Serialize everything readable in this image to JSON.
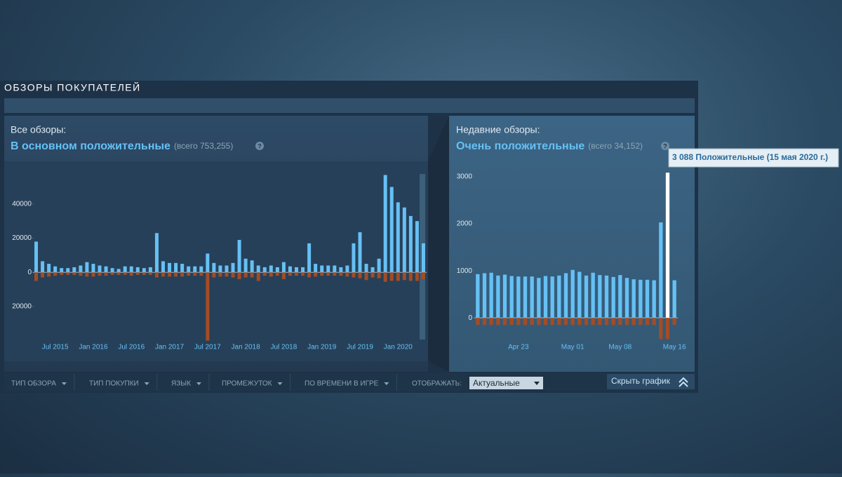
{
  "section_title": "ОБЗОРЫ ПОКУПАТЕЛЕЙ",
  "summary": {
    "all": {
      "label": "Все обзоры:",
      "rating": "В основном положительные",
      "total": "(всего 753,255)"
    },
    "recent": {
      "label": "Недавние обзоры:",
      "rating": "Очень положительные",
      "total": "(всего 34,152)"
    }
  },
  "tooltip": "3 088 Положительные (15 мая 2020 г.)",
  "filters": [
    "ТИП ОБЗОРА",
    "ТИП ПОКУПКИ",
    "ЯЗЫК",
    "ПРОМЕЖУТОК",
    "ПО ВРЕМЕНИ В ИГРЕ"
  ],
  "display": {
    "label": "ОТОБРАЖАТЬ:",
    "value": "Актуальные"
  },
  "hide_graph": "Скрыть график",
  "chart_data": [
    {
      "type": "bar",
      "categories": [
        null,
        null,
        null,
        "Jul 2015",
        null,
        null,
        null,
        null,
        null,
        "Jan 2016",
        null,
        null,
        null,
        null,
        null,
        "Jul 2016",
        null,
        null,
        null,
        null,
        null,
        "Jan 2017",
        null,
        null,
        null,
        null,
        null,
        "Jul 2017",
        null,
        null,
        null,
        null,
        null,
        "Jan 2018",
        null,
        null,
        null,
        null,
        null,
        "Jul 2018",
        null,
        null,
        null,
        null,
        null,
        "Jan 2019",
        null,
        null,
        null,
        null,
        null,
        "Jul 2019",
        null,
        null,
        null,
        null,
        null,
        "Jan 2020",
        null,
        null,
        null,
        null
      ],
      "series": [
        {
          "color": "#66c0f4",
          "values": [
            18000,
            6500,
            5000,
            3500,
            2500,
            2500,
            3000,
            4000,
            6000,
            5000,
            4000,
            3500,
            2500,
            2000,
            3500,
            3500,
            3000,
            2500,
            3000,
            23000,
            6500,
            5500,
            5500,
            5000,
            3500,
            3500,
            3500,
            11000,
            5500,
            4000,
            4000,
            5500,
            19000,
            8000,
            7000,
            4000,
            3000,
            4000,
            3000,
            6000,
            3500,
            3000,
            3000,
            17000,
            5000,
            4000,
            4000,
            4000,
            3000,
            4000,
            17000,
            23500,
            5000,
            3000,
            8000,
            57000,
            50000,
            41000,
            38000,
            33000,
            30000,
            17000
          ]
        },
        {
          "color": "#a34c25",
          "values": [
            -5000,
            -3000,
            -2500,
            -2000,
            -1500,
            -1500,
            -1500,
            -2000,
            -2500,
            -2500,
            -2000,
            -2000,
            -1500,
            -1500,
            -1500,
            -2000,
            -1500,
            -1500,
            -1500,
            -3000,
            -2500,
            -2500,
            -2500,
            -2500,
            -2000,
            -2000,
            -2000,
            -40000,
            -3000,
            -2500,
            -2500,
            -3000,
            -4000,
            -3000,
            -3000,
            -5000,
            -2000,
            -2500,
            -2000,
            -4000,
            -2000,
            -2000,
            -2000,
            -3000,
            -2500,
            -2000,
            -2000,
            -2000,
            -2000,
            -2500,
            -3000,
            -3500,
            -4500,
            -3000,
            -3500,
            -5500,
            -5000,
            -5000,
            -4500,
            -5000,
            -5000,
            -4000
          ]
        }
      ],
      "ylim": [
        -50000,
        65000
      ],
      "yticks": [
        {
          "value": -20000,
          "label": "20000"
        },
        0,
        20000,
        40000
      ]
    },
    {
      "type": "bar",
      "categories": [
        null,
        null,
        null,
        null,
        null,
        null,
        "Apr 23",
        null,
        null,
        null,
        null,
        null,
        null,
        null,
        "May 01",
        null,
        null,
        null,
        null,
        null,
        null,
        "May 08",
        null,
        null,
        null,
        null,
        null,
        null,
        null,
        "May 16"
      ],
      "series": [
        {
          "color": "#66c0f4",
          "values": [
            930,
            950,
            960,
            900,
            920,
            890,
            880,
            880,
            880,
            850,
            890,
            880,
            900,
            950,
            1020,
            980,
            900,
            960,
            910,
            900,
            870,
            910,
            850,
            820,
            810,
            810,
            800,
            2030,
            3088,
            800
          ]
        },
        {
          "color": "#a34c25",
          "values": [
            -150,
            -150,
            -150,
            -150,
            -150,
            -150,
            -150,
            -150,
            -150,
            -150,
            -150,
            -150,
            -150,
            -150,
            -150,
            -150,
            -150,
            -150,
            -150,
            -150,
            -150,
            -150,
            -150,
            -150,
            -150,
            -150,
            -150,
            -450,
            -450,
            -150
          ]
        }
      ],
      "highlight": 28,
      "ylim": [
        -550,
        3180
      ],
      "yticks": [
        0,
        1000,
        2000,
        3000
      ]
    }
  ]
}
